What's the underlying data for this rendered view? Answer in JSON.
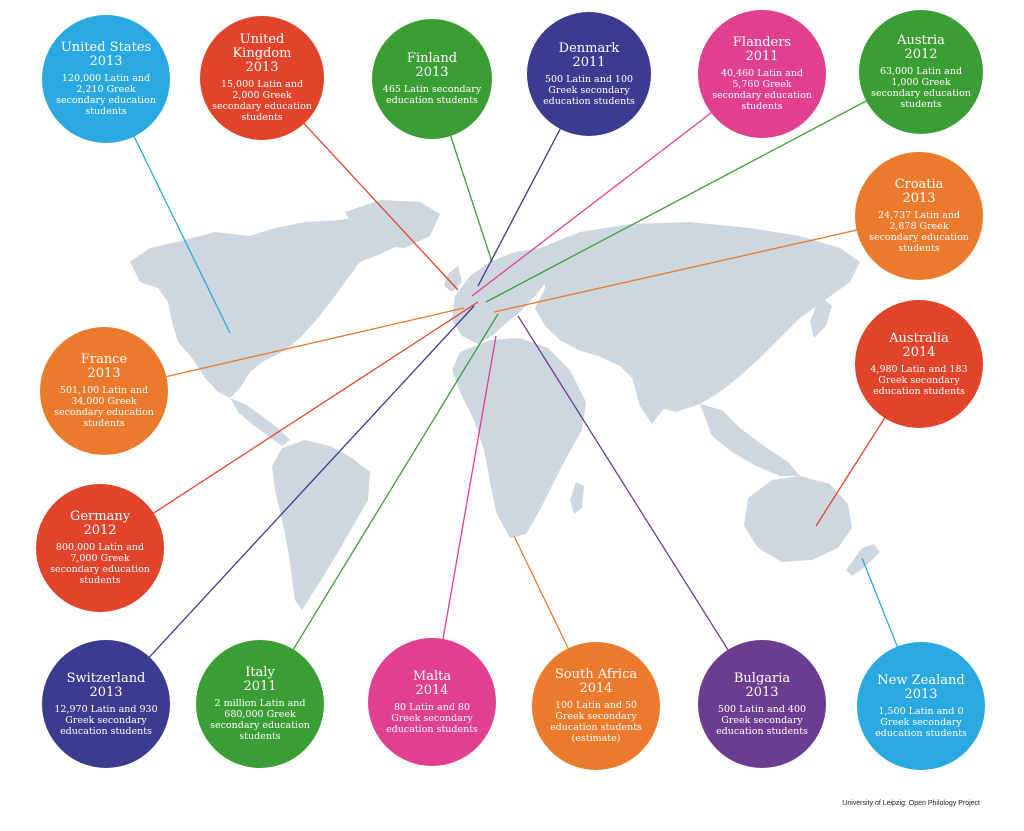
{
  "map": {
    "land_color": "#cdd7e0"
  },
  "credit": "University of Leipzig: Open Philology Project",
  "countries": [
    {
      "id": "united-states",
      "name": "United States",
      "year": "2013",
      "desc": "120,000 Latin and 2,210 Greek secondary education students",
      "color": "#29a9df"
    },
    {
      "id": "united-kingdom",
      "name": "United Kingdom",
      "year": "2013",
      "desc": "15,000 Latin and 2,000 Greek secondary education students",
      "color": "#e2432b"
    },
    {
      "id": "finland",
      "name": "Finland",
      "year": "2013",
      "desc": "465 Latin secondary education students",
      "color": "#3b9e34"
    },
    {
      "id": "denmark",
      "name": "Denmark",
      "year": "2011",
      "desc": "500 Latin and 100 Greek secondary education students",
      "color": "#3b3b8f"
    },
    {
      "id": "flanders",
      "name": "Flanders",
      "year": "2011",
      "desc": "40,460 Latin and 5,760 Greek secondary education students",
      "color": "#e0408e"
    },
    {
      "id": "austria",
      "name": "Austria",
      "year": "2012",
      "desc": "63,000 Latin and 1,000 Greek secondary education students",
      "color": "#3b9e34"
    },
    {
      "id": "croatia",
      "name": "Croatia",
      "year": "2013",
      "desc": "24,737 Latin and 2,878 Greek secondary education students",
      "color": "#ec7a2c"
    },
    {
      "id": "france",
      "name": "France",
      "year": "2013",
      "desc": "501,100 Latin and 34,000 Greek secondary education students",
      "color": "#ec7a2c"
    },
    {
      "id": "australia",
      "name": "Australia",
      "year": "2014",
      "desc": "4,980 Latin and 183 Greek secondary education students",
      "color": "#e2432b"
    },
    {
      "id": "germany",
      "name": "Germany",
      "year": "2012",
      "desc": "800,000 Latin and 7,000 Greek secondary education students",
      "color": "#e2432b"
    },
    {
      "id": "switzerland",
      "name": "Switzerland",
      "year": "2013",
      "desc": "12,970 Latin and 930 Greek secondary education students",
      "color": "#3b3b8f"
    },
    {
      "id": "italy",
      "name": "Italy",
      "year": "2011",
      "desc": "2 million Latin and 680,000 Greek secondary education students",
      "color": "#3b9e34"
    },
    {
      "id": "malta",
      "name": "Malta",
      "year": "2014",
      "desc": "80 Latin and 80 Greek secondary education students",
      "color": "#e0408e"
    },
    {
      "id": "south-africa",
      "name": "South Africa",
      "year": "2014",
      "desc": "100 Latin and 50 Greek secondary education students (estimate)",
      "color": "#ec7a2c"
    },
    {
      "id": "bulgaria",
      "name": "Bulgaria",
      "year": "2013",
      "desc": "500 Latin and 400 Greek secondary education students",
      "color": "#6b3d90"
    },
    {
      "id": "new-zealand",
      "name": "New Zealand",
      "year": "2013",
      "desc": "1,500 Latin and 0 Greek secondary education students",
      "color": "#29a9df"
    }
  ]
}
